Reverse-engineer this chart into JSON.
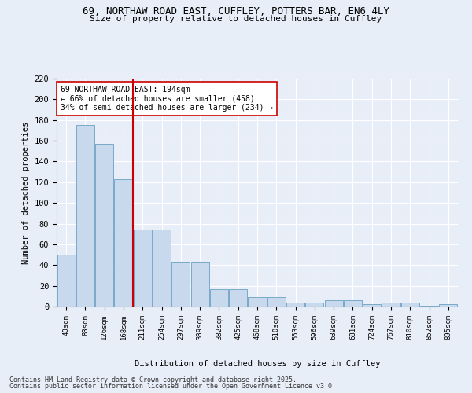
{
  "title1": "69, NORTHAW ROAD EAST, CUFFLEY, POTTERS BAR, EN6 4LY",
  "title2": "Size of property relative to detached houses in Cuffley",
  "xlabel": "Distribution of detached houses by size in Cuffley",
  "ylabel": "Number of detached properties",
  "categories": [
    "40sqm",
    "83sqm",
    "126sqm",
    "168sqm",
    "211sqm",
    "254sqm",
    "297sqm",
    "339sqm",
    "382sqm",
    "425sqm",
    "468sqm",
    "510sqm",
    "553sqm",
    "596sqm",
    "639sqm",
    "681sqm",
    "724sqm",
    "767sqm",
    "810sqm",
    "852sqm",
    "895sqm"
  ],
  "values": [
    50,
    175,
    157,
    123,
    74,
    74,
    43,
    43,
    17,
    17,
    9,
    9,
    4,
    4,
    6,
    6,
    2,
    4,
    4,
    1,
    2
  ],
  "bar_color": "#c8d8ed",
  "bar_edge_color": "#7aaac8",
  "annotation_line1": "69 NORTHAW ROAD EAST: 194sqm",
  "annotation_line2": "← 66% of detached houses are smaller (458)",
  "annotation_line3": "34% of semi-detached houses are larger (234) →",
  "annotation_box_color": "#ffffff",
  "annotation_box_edge_color": "#cc0000",
  "red_line_color": "#cc0000",
  "ylim": [
    0,
    220
  ],
  "yticks": [
    0,
    20,
    40,
    60,
    80,
    100,
    120,
    140,
    160,
    180,
    200,
    220
  ],
  "footer1": "Contains HM Land Registry data © Crown copyright and database right 2025.",
  "footer2": "Contains public sector information licensed under the Open Government Licence v3.0.",
  "bg_color": "#e8eef8",
  "plot_bg_color": "#e8eef8",
  "grid_color": "#ffffff"
}
